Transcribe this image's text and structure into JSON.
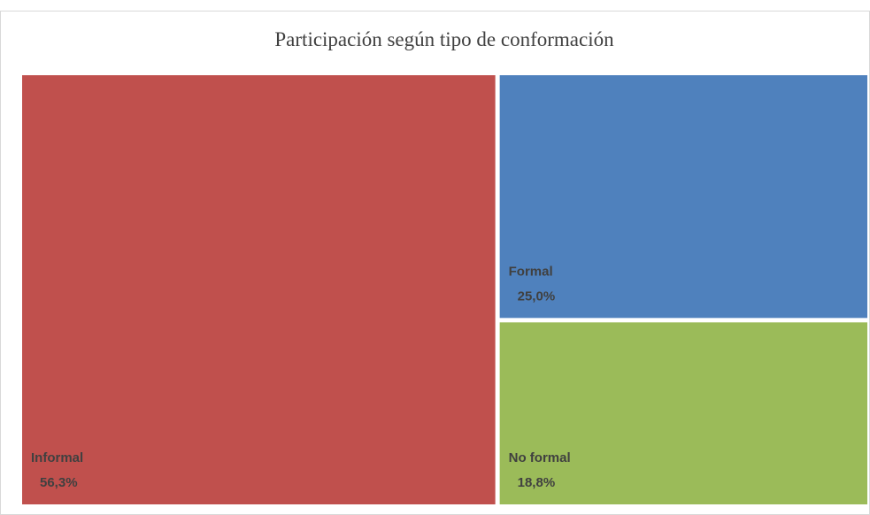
{
  "chart_data": {
    "type": "treemap",
    "title": "Participación  según tipo de conformación",
    "categories": [
      "Informal",
      "Formal",
      "No formal"
    ],
    "values": [
      56.3,
      25.0,
      18.8
    ],
    "value_labels": [
      "56,3%",
      "25,0%",
      "18,8%"
    ],
    "colors": [
      "#c0504d",
      "#4f81bd",
      "#9bbb59"
    ]
  }
}
